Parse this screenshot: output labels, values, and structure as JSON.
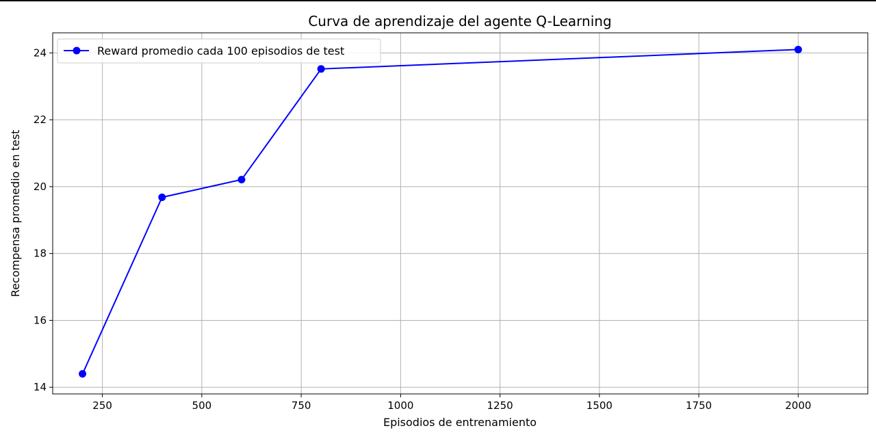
{
  "chart_data": {
    "type": "line",
    "title": "Curva de aprendizaje del agente Q-Learning",
    "xlabel": "Episodios de entrenamiento",
    "ylabel": "Recompensa promedio en test",
    "xlim": [
      125,
      2175
    ],
    "ylim": [
      13.8,
      24.6
    ],
    "xticks": [
      250,
      500,
      750,
      1000,
      1250,
      1500,
      1750,
      2000
    ],
    "yticks": [
      14,
      16,
      18,
      20,
      22,
      24
    ],
    "grid": true,
    "legend_position": "upper left",
    "series": [
      {
        "name": "Reward promedio cada 100 episodios de test",
        "color": "#0000ff",
        "marker": "circle",
        "x": [
          200,
          400,
          600,
          800,
          2000
        ],
        "y": [
          14.4,
          19.68,
          20.21,
          23.52,
          24.1
        ]
      }
    ]
  }
}
